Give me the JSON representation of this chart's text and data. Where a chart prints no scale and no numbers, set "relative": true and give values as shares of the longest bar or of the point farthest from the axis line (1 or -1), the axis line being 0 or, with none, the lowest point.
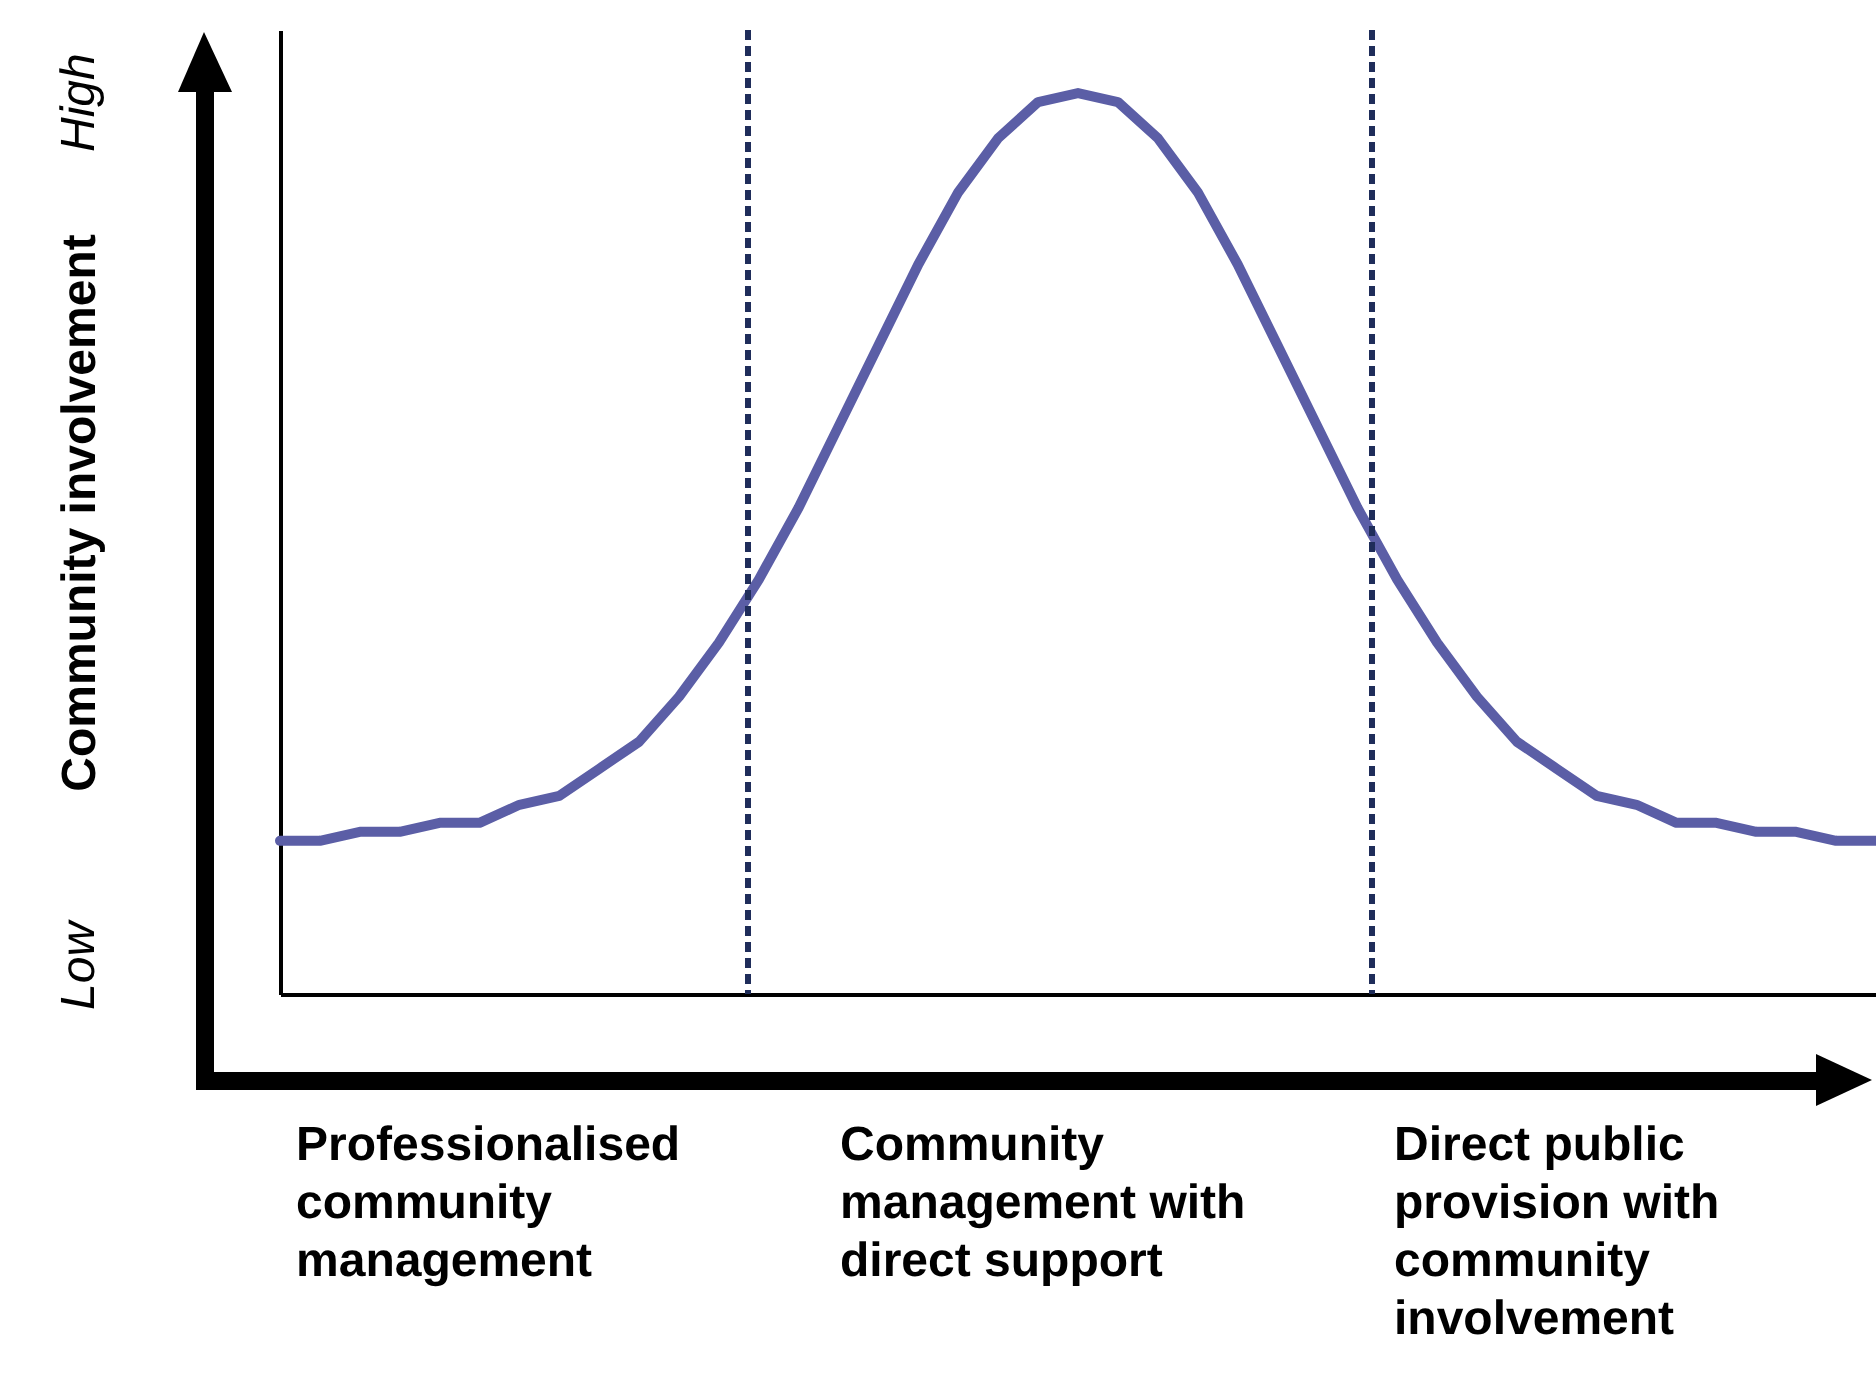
{
  "chart_data": {
    "type": "line",
    "relative": true,
    "ylabel": "Community involvement",
    "tick_labels": false,
    "grid": false,
    "categories": [
      null,
      null,
      null,
      null,
      null,
      null,
      null,
      null,
      null,
      null,
      null,
      null,
      null,
      null,
      null,
      null,
      null,
      null,
      null,
      null,
      null,
      null,
      null,
      null,
      null,
      null,
      null,
      null,
      null,
      null,
      null,
      null,
      null,
      null,
      null,
      null,
      null,
      null,
      null,
      null,
      null
    ],
    "series": [
      {
        "color": "#5b5ea6",
        "values": [
          0.17,
          0.17,
          0.18,
          0.18,
          0.19,
          0.19,
          0.21,
          0.22,
          0.25,
          0.28,
          0.33,
          0.39,
          0.46,
          0.54,
          0.63,
          0.72,
          0.81,
          0.89,
          0.95,
          0.99,
          1,
          0.99,
          0.95,
          0.89,
          0.81,
          0.72,
          0.63,
          0.54,
          0.46,
          0.39,
          0.33,
          0.28,
          0.25,
          0.22,
          0.21,
          0.19,
          0.19,
          0.18,
          0.18,
          0.17,
          0.17
        ]
      }
    ],
    "annotations": [
      "Low",
      "High",
      "Professionalised community management",
      "Community management with direct support",
      "Direct public provision with community involvement"
    ]
  }
}
